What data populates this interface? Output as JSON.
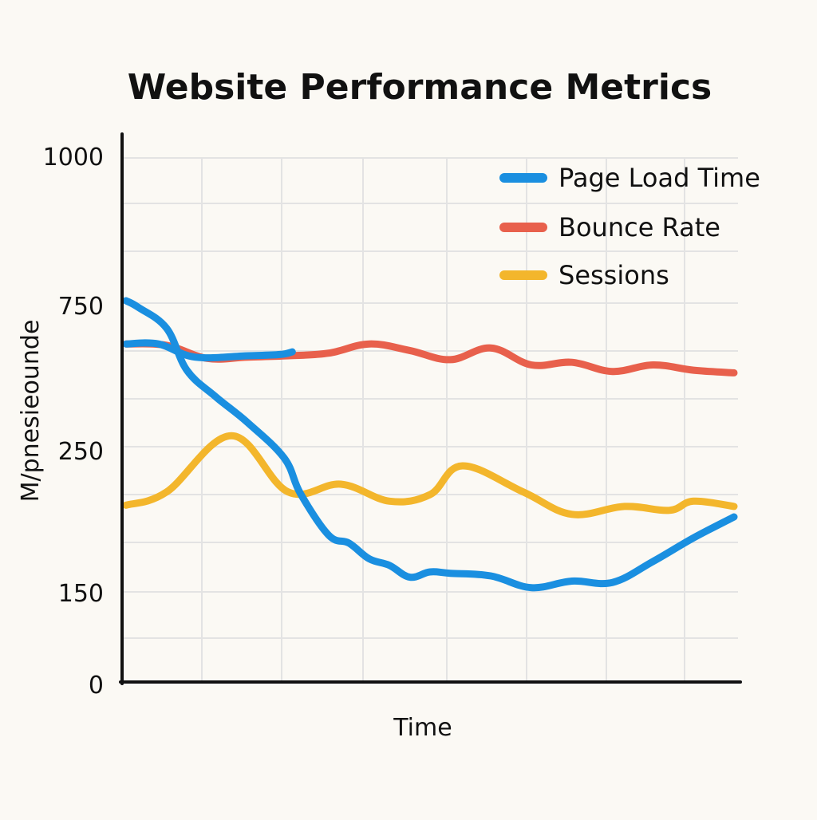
{
  "chart_data": {
    "type": "line",
    "title": "Website Performance Metrics",
    "xlabel": "Time",
    "ylabel": "M/pnesieounde",
    "y_ticks": [
      {
        "label": "1000",
        "pos": 0
      },
      {
        "label": "750",
        "pos": 1
      },
      {
        "label": "250",
        "pos": 2
      },
      {
        "label": "150",
        "pos": 3
      },
      {
        "label": "0",
        "pos": 4
      }
    ],
    "y_scale": "tick-indexed (labels 1000, 750, 250, 150, 0 spaced evenly)",
    "x": [
      0,
      1,
      2,
      3,
      4,
      5,
      6,
      7,
      8,
      9,
      10,
      11,
      12,
      13,
      14,
      15
    ],
    "xlim": [
      0,
      15
    ],
    "grid": true,
    "legend_position": "top-right",
    "series": [
      {
        "name": "Page Load Time",
        "color": "#1a8fe0",
        "x": [
          0,
          0.3,
          1,
          1.5,
          2.2,
          3,
          3.9,
          4.3,
          5,
          5.5,
          6,
          6.5,
          7,
          7.5,
          8,
          9,
          10,
          11,
          12,
          13,
          14,
          15
        ],
        "values": [
          1.09,
          1.14,
          1.3,
          1.62,
          1.82,
          2.02,
          2.29,
          2.56,
          2.88,
          2.94,
          3.06,
          3.11,
          3.2,
          3.16,
          3.17,
          3.19,
          3.28,
          3.23,
          3.24,
          3.08,
          2.9,
          2.74
        ]
      },
      {
        "name": "Bounce Rate",
        "color": "#e8604c",
        "x": [
          0,
          1,
          2,
          3,
          4,
          5,
          6,
          7,
          8,
          9,
          10,
          11,
          12,
          13,
          14,
          15
        ],
        "values": [
          1.42,
          1.43,
          1.53,
          1.52,
          1.51,
          1.49,
          1.42,
          1.47,
          1.54,
          1.45,
          1.58,
          1.56,
          1.63,
          1.58,
          1.62,
          1.64
        ]
      },
      {
        "name": "Sessions",
        "color": "#f3b62c",
        "x": [
          0,
          1,
          2.6,
          4,
          5.3,
          6.5,
          7.5,
          8.3,
          9.8,
          11,
          12.3,
          13.4,
          14,
          15
        ],
        "values": [
          2.65,
          2.55,
          2.12,
          2.55,
          2.49,
          2.62,
          2.57,
          2.35,
          2.55,
          2.72,
          2.66,
          2.69,
          2.62,
          2.66
        ]
      }
    ]
  }
}
